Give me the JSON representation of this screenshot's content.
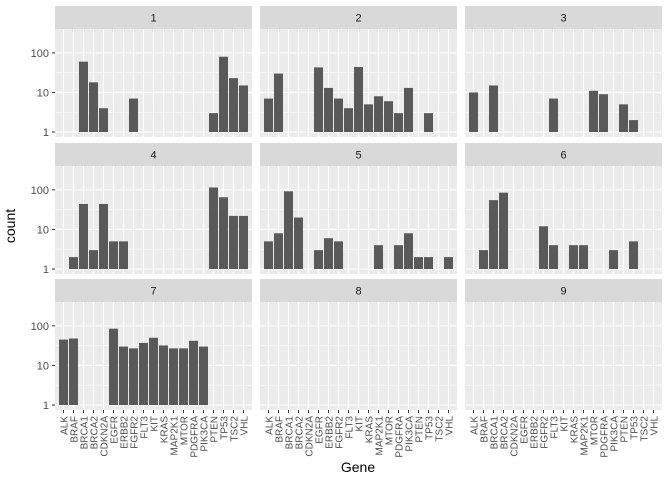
{
  "chart_data": {
    "type": "bar",
    "facet_type": "facet_wrap",
    "xlabel": "Gene",
    "ylabel": "count",
    "y_scale": "log10",
    "y_ticks": [
      1,
      10,
      100
    ],
    "ylim": [
      1,
      300
    ],
    "grid": true,
    "colors": {
      "panel_background": "#ebebeb",
      "strip_background": "#d9d9d9",
      "bar_fill": "#595959",
      "grid_major": "#ffffff",
      "text": "#4d4d4d",
      "axis_title": "#000000"
    },
    "categories": [
      "ALK",
      "BRAF",
      "BRCA1",
      "BRCA2",
      "CDKN2A",
      "EGFR",
      "ERBB2",
      "FGFR2",
      "FLT3",
      "KIT",
      "KRAS",
      "MAP2K1",
      "MTOR",
      "PDGFRA",
      "PIK3CA",
      "PTEN",
      "TP53",
      "TSC2",
      "VHL"
    ],
    "facets": [
      {
        "label": "1",
        "values": [
          0,
          0,
          60,
          18,
          4,
          0,
          0,
          7,
          0,
          0,
          0,
          0,
          0,
          0,
          0,
          3,
          80,
          23,
          15
        ]
      },
      {
        "label": "2",
        "values": [
          7,
          30,
          0,
          0,
          0,
          43,
          13,
          7,
          4,
          44,
          5,
          8,
          6,
          3,
          13,
          0,
          3,
          0,
          0
        ]
      },
      {
        "label": "3",
        "values": [
          10,
          0,
          15,
          0,
          0,
          0,
          0,
          0,
          7,
          0,
          0,
          0,
          11,
          9,
          0,
          5,
          2,
          0,
          0
        ]
      },
      {
        "label": "4",
        "values": [
          0,
          2,
          44,
          3,
          44,
          5,
          5,
          0,
          0,
          0,
          0,
          0,
          0,
          0,
          0,
          115,
          65,
          22,
          22
        ]
      },
      {
        "label": "5",
        "values": [
          5,
          8,
          92,
          20,
          0,
          3,
          6,
          5,
          0,
          0,
          0,
          4,
          0,
          4,
          8,
          2,
          2,
          0,
          2
        ]
      },
      {
        "label": "6",
        "values": [
          0,
          3,
          55,
          85,
          0,
          0,
          0,
          12,
          4,
          0,
          4,
          4,
          0,
          0,
          3,
          0,
          5,
          0,
          0
        ]
      },
      {
        "label": "7",
        "values": [
          45,
          48,
          0,
          0,
          0,
          85,
          30,
          27,
          37,
          50,
          32,
          27,
          27,
          42,
          30,
          0,
          0,
          0,
          0
        ]
      },
      {
        "label": "8",
        "values": [
          0,
          0,
          0,
          0,
          0,
          0,
          0,
          0,
          0,
          0,
          0,
          0,
          0,
          0,
          0,
          0,
          0,
          0,
          0
        ]
      },
      {
        "label": "9",
        "values": [
          0,
          0,
          0,
          0,
          0,
          0,
          0,
          0,
          0,
          0,
          0,
          0,
          0,
          0,
          0,
          0,
          0,
          0,
          0
        ]
      }
    ]
  }
}
